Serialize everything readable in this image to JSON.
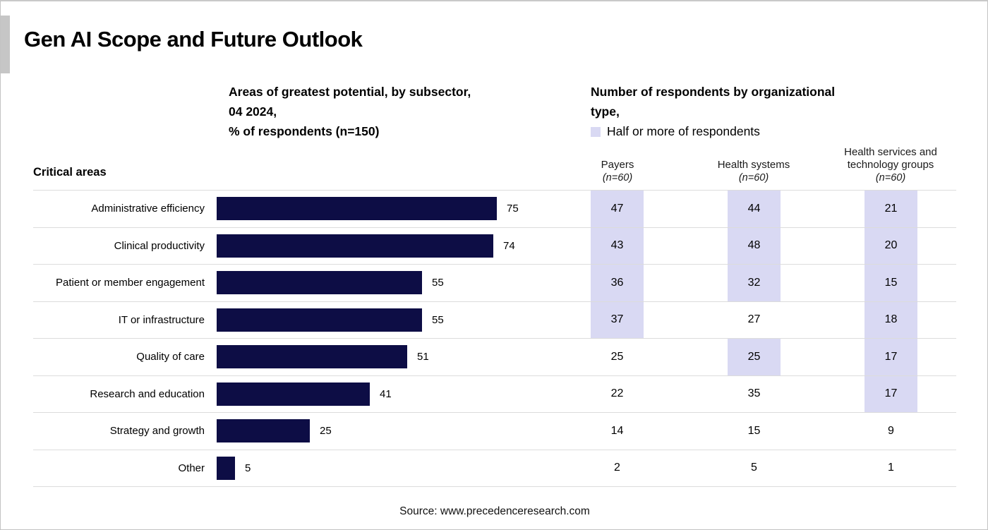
{
  "page": {
    "title": "Gen AI Scope and Future Outlook",
    "source": "Source: www.precedenceresearch.com"
  },
  "left_header": {
    "line1": "Areas of greatest potential, by subsector,",
    "line2": "04 2024,",
    "line3": "% of respondents (n=150)"
  },
  "right_header": {
    "line1": "Number of respondents by organizational",
    "line2": "type,",
    "legend_label": "Half or more of respondents"
  },
  "row_header_label": "Critical areas",
  "columns": [
    {
      "label": "Payers",
      "n": "(n=60)"
    },
    {
      "label": "Health systems",
      "n": "(n=60)"
    },
    {
      "label": "Health services and technology groups",
      "n": "(n=60)"
    }
  ],
  "colors": {
    "bar": "#0d0d45",
    "highlight": "#d9d9f3",
    "grid_line": "#dcdcdc"
  },
  "chart_data": {
    "type": "bar",
    "orientation": "horizontal",
    "title": "Areas of greatest potential, by subsector, 04 2024, % of respondents (n=150)",
    "categories_label": "Critical areas",
    "categories": [
      "Administrative efficiency",
      "Clinical productivity",
      "Patient or member engagement",
      "IT or infrastructure",
      "Quality of care",
      "Research and education",
      "Strategy and growth",
      "Other"
    ],
    "xlim": [
      0,
      80
    ],
    "grid": false,
    "legend": {
      "label": "Half or more of respondents",
      "position": "top-right"
    },
    "series": [
      {
        "name": "% of respondents (n=150)",
        "role": "bars",
        "values": [
          75,
          74,
          55,
          55,
          51,
          41,
          25,
          5
        ]
      },
      {
        "name": "Payers (n=60)",
        "role": "table-column",
        "values": [
          47,
          43,
          36,
          37,
          25,
          22,
          14,
          2
        ],
        "highlighted": [
          true,
          true,
          true,
          true,
          false,
          false,
          false,
          false
        ]
      },
      {
        "name": "Health systems (n=60)",
        "role": "table-column",
        "values": [
          44,
          48,
          32,
          27,
          25,
          35,
          15,
          5
        ],
        "highlighted": [
          true,
          true,
          true,
          false,
          true,
          false,
          false,
          false
        ]
      },
      {
        "name": "Health services and technology groups (n=60)",
        "role": "table-column",
        "values": [
          21,
          20,
          15,
          18,
          17,
          17,
          9,
          1
        ],
        "highlighted": [
          true,
          true,
          true,
          true,
          true,
          true,
          false,
          false
        ]
      }
    ]
  }
}
